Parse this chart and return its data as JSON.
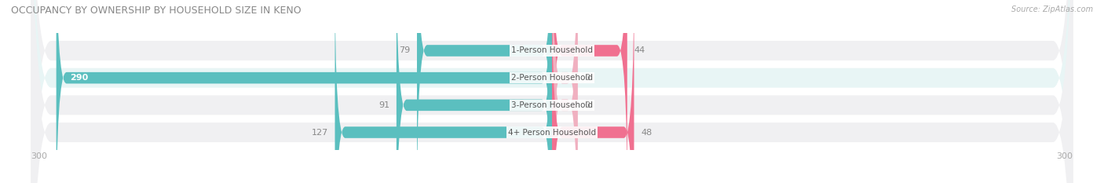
{
  "title": "OCCUPANCY BY OWNERSHIP BY HOUSEHOLD SIZE IN KENO",
  "source": "Source: ZipAtlas.com",
  "categories": [
    "1-Person Household",
    "2-Person Household",
    "3-Person Household",
    "4+ Person Household"
  ],
  "owner_values": [
    79,
    290,
    91,
    127
  ],
  "renter_values": [
    44,
    0,
    0,
    48
  ],
  "owner_color": "#5bbfbf",
  "renter_color_strong": "#f07090",
  "renter_color_weak": "#f0b0c0",
  "bar_bg_odd": "#f0f0f2",
  "bar_bg_even": "#e8f5f5",
  "axis_max": 300,
  "label_fontsize": 7.5,
  "value_fontsize": 8.0,
  "title_fontsize": 9,
  "title_color": "#888888",
  "source_color": "#aaaaaa",
  "label_color": "#555555",
  "value_color_normal": "#888888",
  "value_color_on_bar": "#ffffff",
  "tick_color": "#aaaaaa",
  "renter_stub": 15
}
